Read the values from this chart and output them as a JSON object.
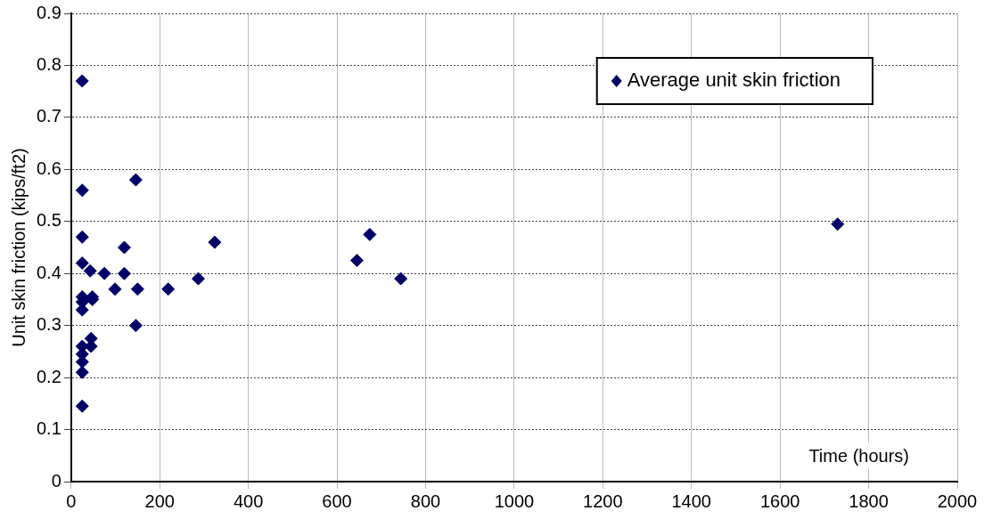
{
  "chart_data": {
    "type": "scatter",
    "xlabel": "Time (hours)",
    "ylabel": "Unit skin friction (kips/ft2)",
    "series": [
      {
        "name": "Average unit skin friction",
        "color": "#000066",
        "x": [
          25,
          25,
          25,
          25,
          25,
          25,
          25,
          25,
          25,
          25,
          25,
          25,
          43,
          48,
          48,
          45,
          45,
          75,
          99,
          120,
          120,
          146,
          146,
          150,
          219,
          287,
          324,
          645,
          674,
          744,
          1730
        ],
        "values": [
          0.77,
          0.56,
          0.47,
          0.42,
          0.355,
          0.345,
          0.33,
          0.26,
          0.245,
          0.23,
          0.21,
          0.145,
          0.405,
          0.35,
          0.355,
          0.26,
          0.275,
          0.4,
          0.37,
          0.45,
          0.4,
          0.58,
          0.3,
          0.37,
          0.37,
          0.39,
          0.46,
          0.425,
          0.475,
          0.39,
          0.495
        ]
      }
    ],
    "xlim": [
      0,
      2000
    ],
    "xticks": [
      0,
      200,
      400,
      600,
      800,
      1000,
      1200,
      1400,
      1600,
      1800,
      2000
    ],
    "ylim": [
      0,
      0.9
    ],
    "yticks": [
      0,
      0.1,
      0.2,
      0.3,
      0.4,
      0.5,
      0.6,
      0.7,
      0.8,
      0.9
    ],
    "grid": true,
    "legend": "top right",
    "marker": "diamond"
  }
}
